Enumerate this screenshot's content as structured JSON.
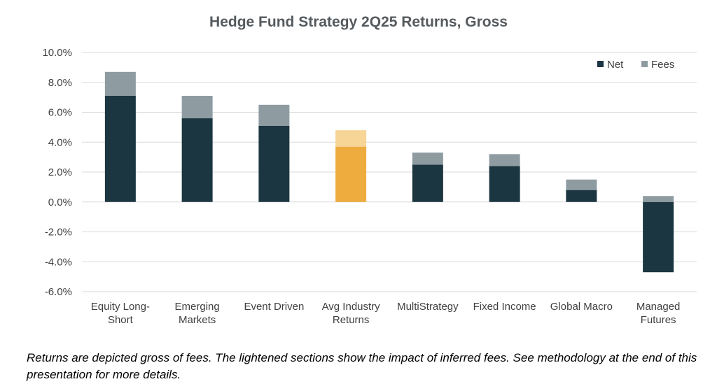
{
  "chart_data": {
    "type": "bar",
    "stacked": true,
    "title": "Hedge Fund Strategy 2Q25 Returns, Gross",
    "ylim": [
      -6.0,
      10.0
    ],
    "yticks": [
      "10.0%",
      "8.0%",
      "6.0%",
      "4.0%",
      "2.0%",
      "0.0%",
      "-2.0%",
      "-4.0%",
      "-6.0%"
    ],
    "ytick_values": [
      10,
      8,
      6,
      4,
      2,
      0,
      -2,
      -4,
      -6
    ],
    "grid": true,
    "legend_position": "top-right",
    "categories": [
      [
        "Equity Long-",
        "Short"
      ],
      [
        "Emerging",
        "Markets"
      ],
      [
        "Event Driven"
      ],
      [
        "Avg Industry",
        "Returns"
      ],
      [
        "MultiStrategy"
      ],
      [
        "Fixed Income"
      ],
      [
        "Global Macro"
      ],
      [
        "Managed",
        "Futures"
      ]
    ],
    "highlight_index": 3,
    "series": [
      {
        "name": "Net",
        "color": "#1b3640",
        "highlight_color": "#eeac3f",
        "values": [
          7.1,
          5.6,
          5.1,
          3.7,
          2.5,
          2.4,
          0.8,
          -4.7
        ]
      },
      {
        "name": "Fees",
        "color": "#8e9ca2",
        "highlight_color": "#f6d597",
        "values": [
          1.6,
          1.5,
          1.4,
          1.1,
          0.8,
          0.8,
          0.7,
          0.4
        ]
      }
    ]
  },
  "caption": "Returns are depicted gross of fees.  The lightened sections show the impact of inferred fees.  See methodology at the end of this presentation for more details."
}
